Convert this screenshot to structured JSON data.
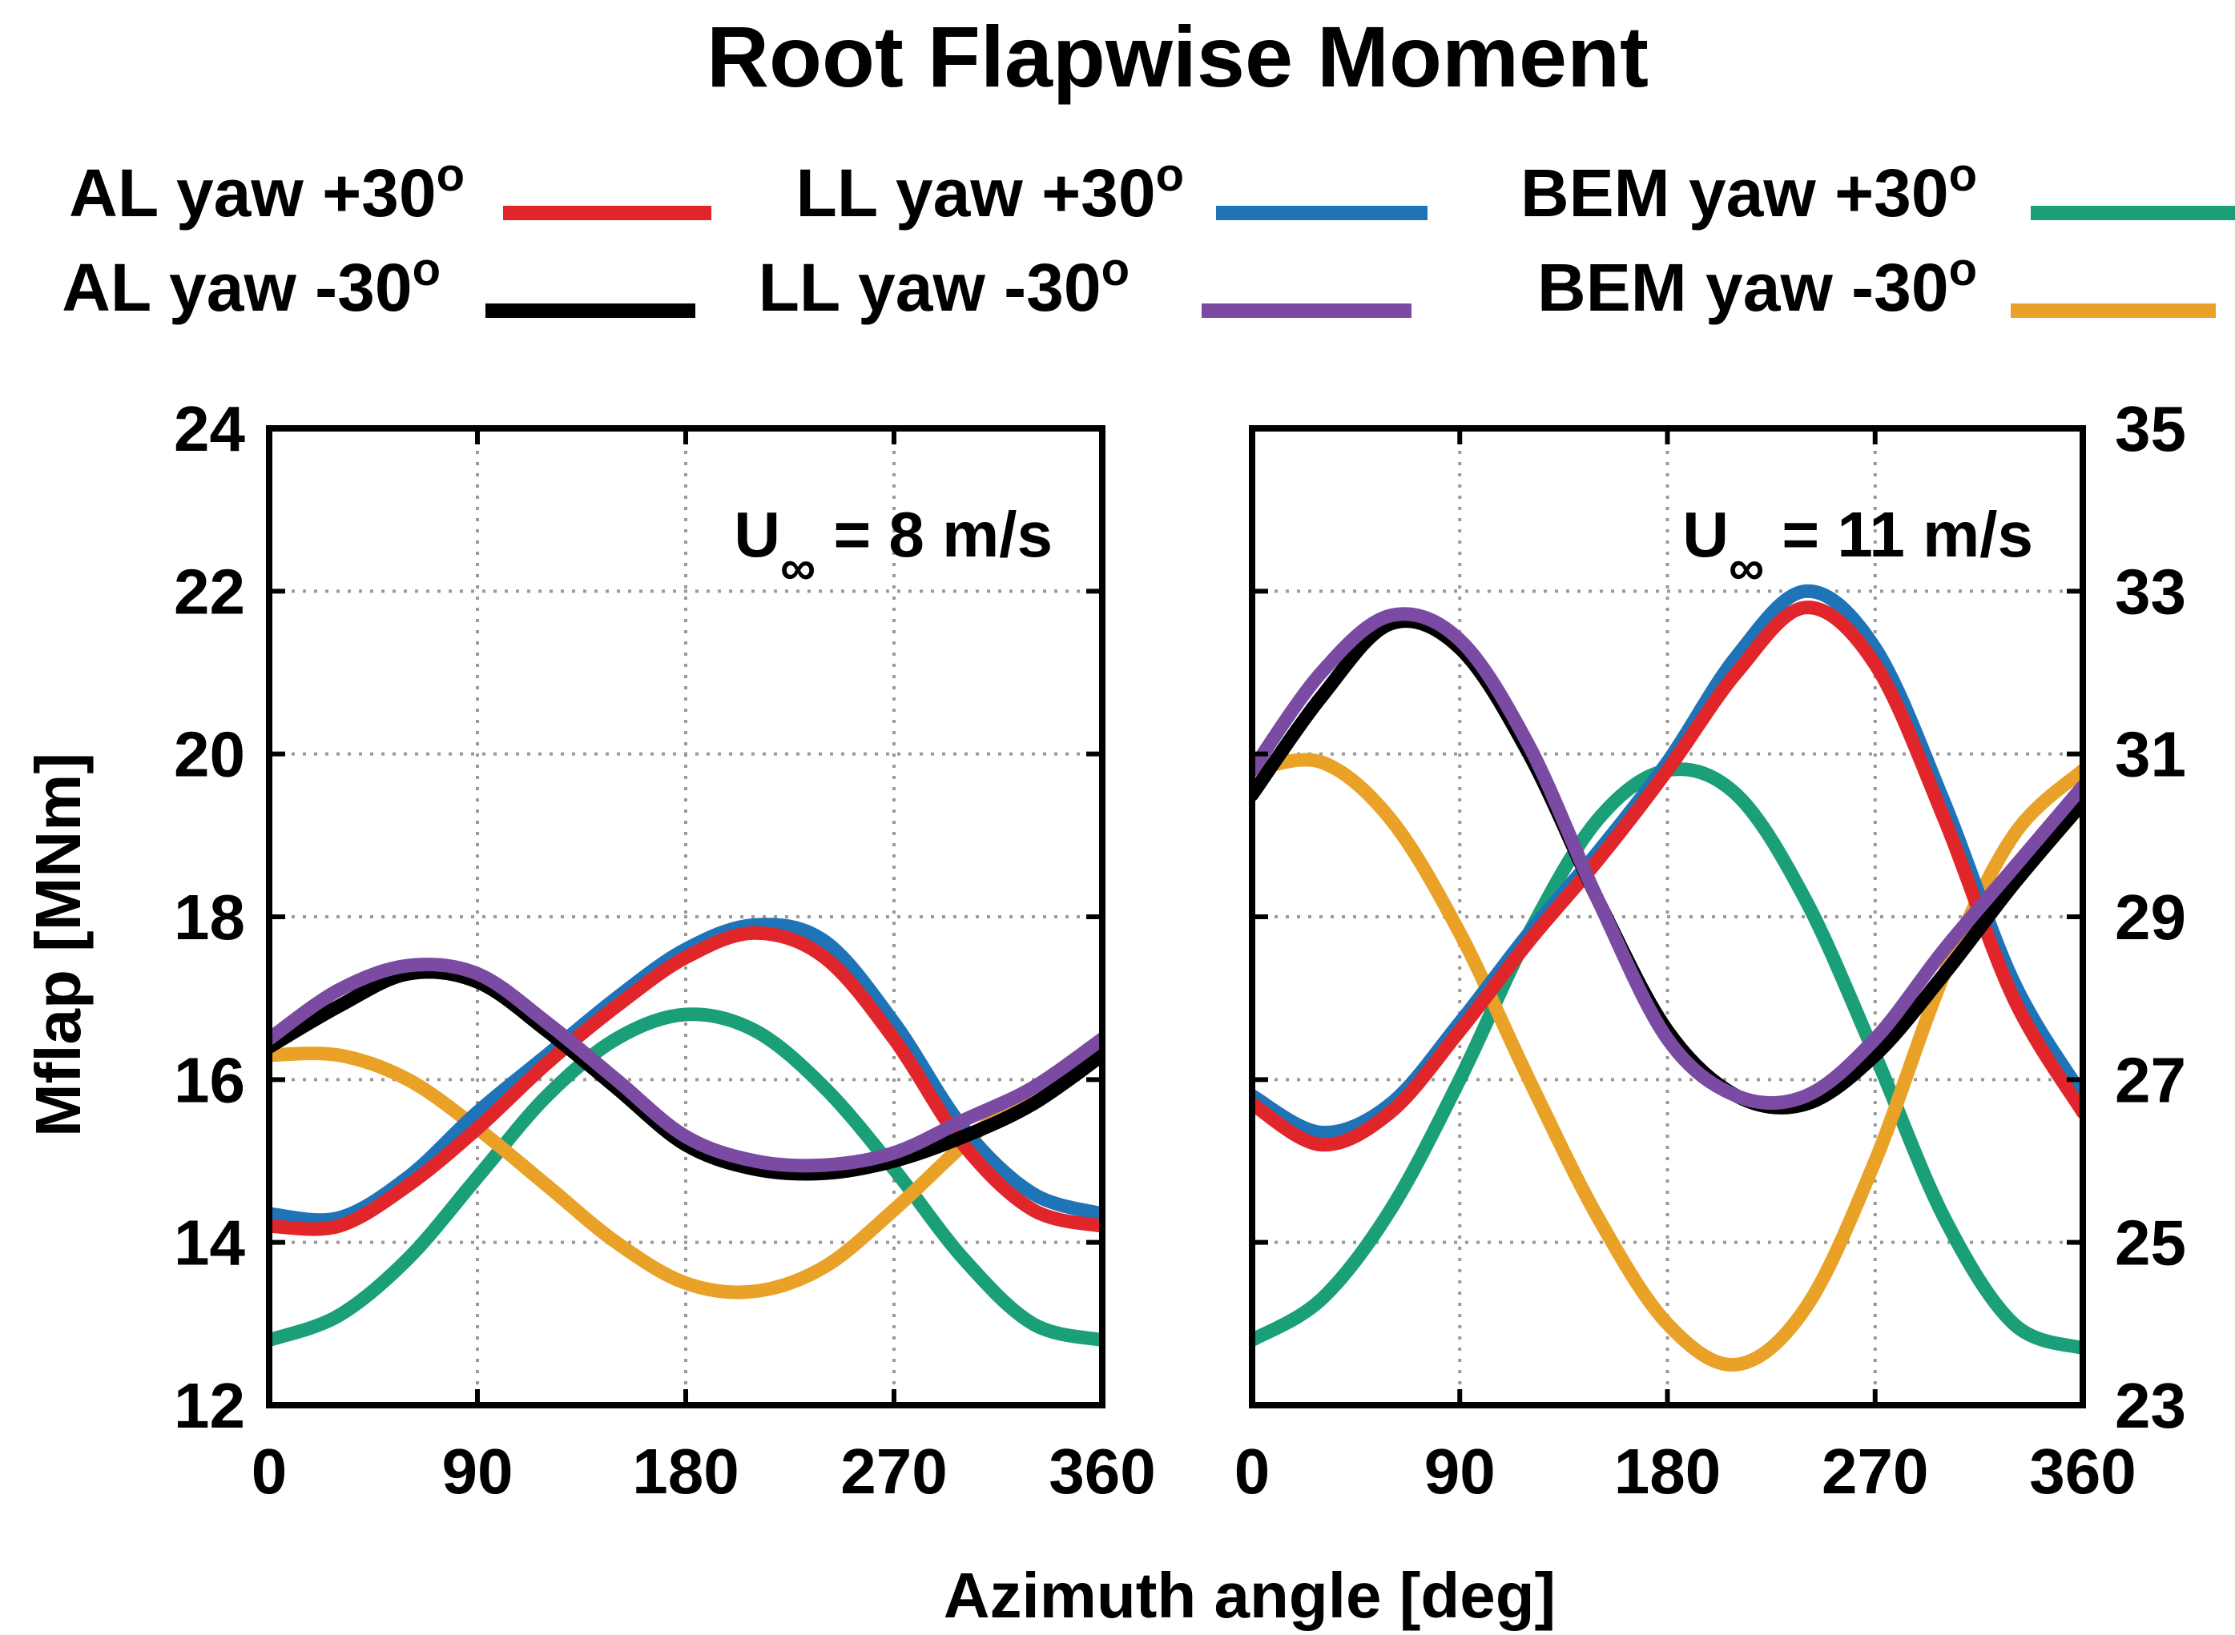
{
  "chart_data": {
    "type": "line",
    "title": "Root Flapwise Moment",
    "xlabel": "Azimuth angle [deg]",
    "ylabel": "Mflap [MNm]",
    "legend_placement": "top",
    "legend": [
      {
        "name": "AL yaw +30",
        "sup": "o",
        "color": "#e0262b"
      },
      {
        "name": "LL yaw +30",
        "sup": "o",
        "color": "#1f74b8"
      },
      {
        "name": "BEM yaw +30",
        "sup": "o",
        "color": "#1a9f78"
      },
      {
        "name": "AL yaw -30",
        "sup": "o",
        "color": "#000000"
      },
      {
        "name": "LL yaw -30",
        "sup": "o",
        "color": "#7b4ba3"
      },
      {
        "name": "BEM yaw -30",
        "sup": "o",
        "color": "#e9a227"
      }
    ],
    "panels": [
      {
        "annotation_main": "U",
        "annotation_sub": "∞",
        "annotation_rest": " = 8 m/s",
        "xlim": [
          0,
          360
        ],
        "ylim": [
          12,
          24
        ],
        "xticks": [
          "0",
          "90",
          "180",
          "270",
          "360"
        ],
        "yticks": [
          "12",
          "14",
          "16",
          "18",
          "20",
          "22",
          "24"
        ],
        "y_tick_labels_side": "left",
        "grid": true,
        "series": [
          {
            "name": "AL yaw +30",
            "x": [
              0,
              30,
              60,
              90,
              120,
              150,
              180,
              210,
              240,
              270,
              300,
              330,
              360
            ],
            "values": [
              14.2,
              14.2,
              14.7,
              15.4,
              16.2,
              16.9,
              17.5,
              17.8,
              17.5,
              16.5,
              15.2,
              14.4,
              14.2
            ]
          },
          {
            "name": "LL yaw +30",
            "x": [
              0,
              30,
              60,
              90,
              120,
              150,
              180,
              210,
              240,
              270,
              300,
              330,
              360
            ],
            "values": [
              14.35,
              14.3,
              14.8,
              15.6,
              16.3,
              17.0,
              17.6,
              17.9,
              17.7,
              16.7,
              15.4,
              14.6,
              14.35
            ]
          },
          {
            "name": "BEM yaw +30",
            "x": [
              0,
              30,
              60,
              90,
              120,
              150,
              180,
              210,
              240,
              270,
              300,
              330,
              360
            ],
            "values": [
              12.8,
              13.1,
              13.8,
              14.8,
              15.8,
              16.5,
              16.8,
              16.6,
              15.9,
              14.9,
              13.8,
              13.0,
              12.8
            ]
          },
          {
            "name": "AL yaw -30",
            "x": [
              0,
              30,
              60,
              90,
              120,
              150,
              180,
              210,
              240,
              270,
              300,
              330,
              360
            ],
            "values": [
              16.4,
              16.9,
              17.3,
              17.2,
              16.6,
              15.9,
              15.2,
              14.9,
              14.85,
              15.0,
              15.3,
              15.7,
              16.3
            ]
          },
          {
            "name": "LL yaw -30",
            "x": [
              0,
              30,
              60,
              90,
              120,
              150,
              180,
              210,
              240,
              270,
              300,
              330,
              360
            ],
            "values": [
              16.5,
              17.1,
              17.4,
              17.3,
              16.7,
              16.0,
              15.3,
              15.0,
              14.95,
              15.1,
              15.5,
              15.9,
              16.5
            ]
          },
          {
            "name": "BEM yaw -30",
            "x": [
              0,
              30,
              60,
              90,
              120,
              150,
              180,
              210,
              240,
              270,
              300,
              330,
              360
            ],
            "values": [
              16.3,
              16.3,
              16.0,
              15.4,
              14.7,
              14.0,
              13.5,
              13.4,
              13.7,
              14.4,
              15.2,
              15.9,
              16.3
            ]
          }
        ]
      },
      {
        "annotation_main": "U",
        "annotation_sub": "∞",
        "annotation_rest": " = 11 m/s",
        "xlim": [
          0,
          360
        ],
        "ylim": [
          23,
          35
        ],
        "xticks": [
          "0",
          "90",
          "180",
          "270",
          "360"
        ],
        "yticks": [
          "23",
          "25",
          "27",
          "29",
          "31",
          "33",
          "35"
        ],
        "y_tick_labels_side": "right",
        "grid": true,
        "series": [
          {
            "name": "AL yaw +30",
            "x": [
              0,
              30,
              60,
              90,
              120,
              150,
              180,
              210,
              240,
              270,
              300,
              330,
              360
            ],
            "values": [
              26.7,
              26.2,
              26.6,
              27.6,
              28.7,
              29.7,
              30.8,
              32.0,
              32.8,
              32.1,
              30.2,
              28.0,
              26.6
            ]
          },
          {
            "name": "LL yaw +30",
            "x": [
              0,
              30,
              60,
              90,
              120,
              150,
              180,
              210,
              240,
              270,
              300,
              330,
              360
            ],
            "values": [
              26.8,
              26.35,
              26.7,
              27.7,
              28.8,
              29.8,
              30.9,
              32.2,
              33.0,
              32.3,
              30.4,
              28.2,
              26.8
            ]
          },
          {
            "name": "BEM yaw +30",
            "x": [
              0,
              30,
              60,
              90,
              120,
              150,
              180,
              210,
              240,
              270,
              300,
              330,
              360
            ],
            "values": [
              23.8,
              24.3,
              25.4,
              27.0,
              28.8,
              30.2,
              30.8,
              30.5,
              29.2,
              27.3,
              25.3,
              24.0,
              23.7
            ]
          },
          {
            "name": "AL yaw -30",
            "x": [
              0,
              30,
              60,
              90,
              120,
              150,
              180,
              210,
              240,
              270,
              300,
              330,
              360
            ],
            "values": [
              30.5,
              31.7,
              32.6,
              32.3,
              31.0,
              29.2,
              27.6,
              26.8,
              26.7,
              27.3,
              28.3,
              29.4,
              30.4
            ]
          },
          {
            "name": "LL yaw -30",
            "x": [
              0,
              30,
              60,
              90,
              120,
              150,
              180,
              210,
              240,
              270,
              300,
              330,
              360
            ],
            "values": [
              30.8,
              32.0,
              32.7,
              32.4,
              31.1,
              29.2,
              27.5,
              26.8,
              26.8,
              27.5,
              28.6,
              29.6,
              30.6
            ]
          },
          {
            "name": "BEM yaw -30",
            "x": [
              0,
              30,
              60,
              90,
              120,
              150,
              180,
              210,
              240,
              270,
              300,
              330,
              360
            ],
            "values": [
              30.8,
              30.9,
              30.2,
              28.8,
              27.0,
              25.3,
              24.0,
              23.5,
              24.2,
              26.0,
              28.3,
              30.0,
              30.8
            ]
          }
        ]
      }
    ]
  }
}
